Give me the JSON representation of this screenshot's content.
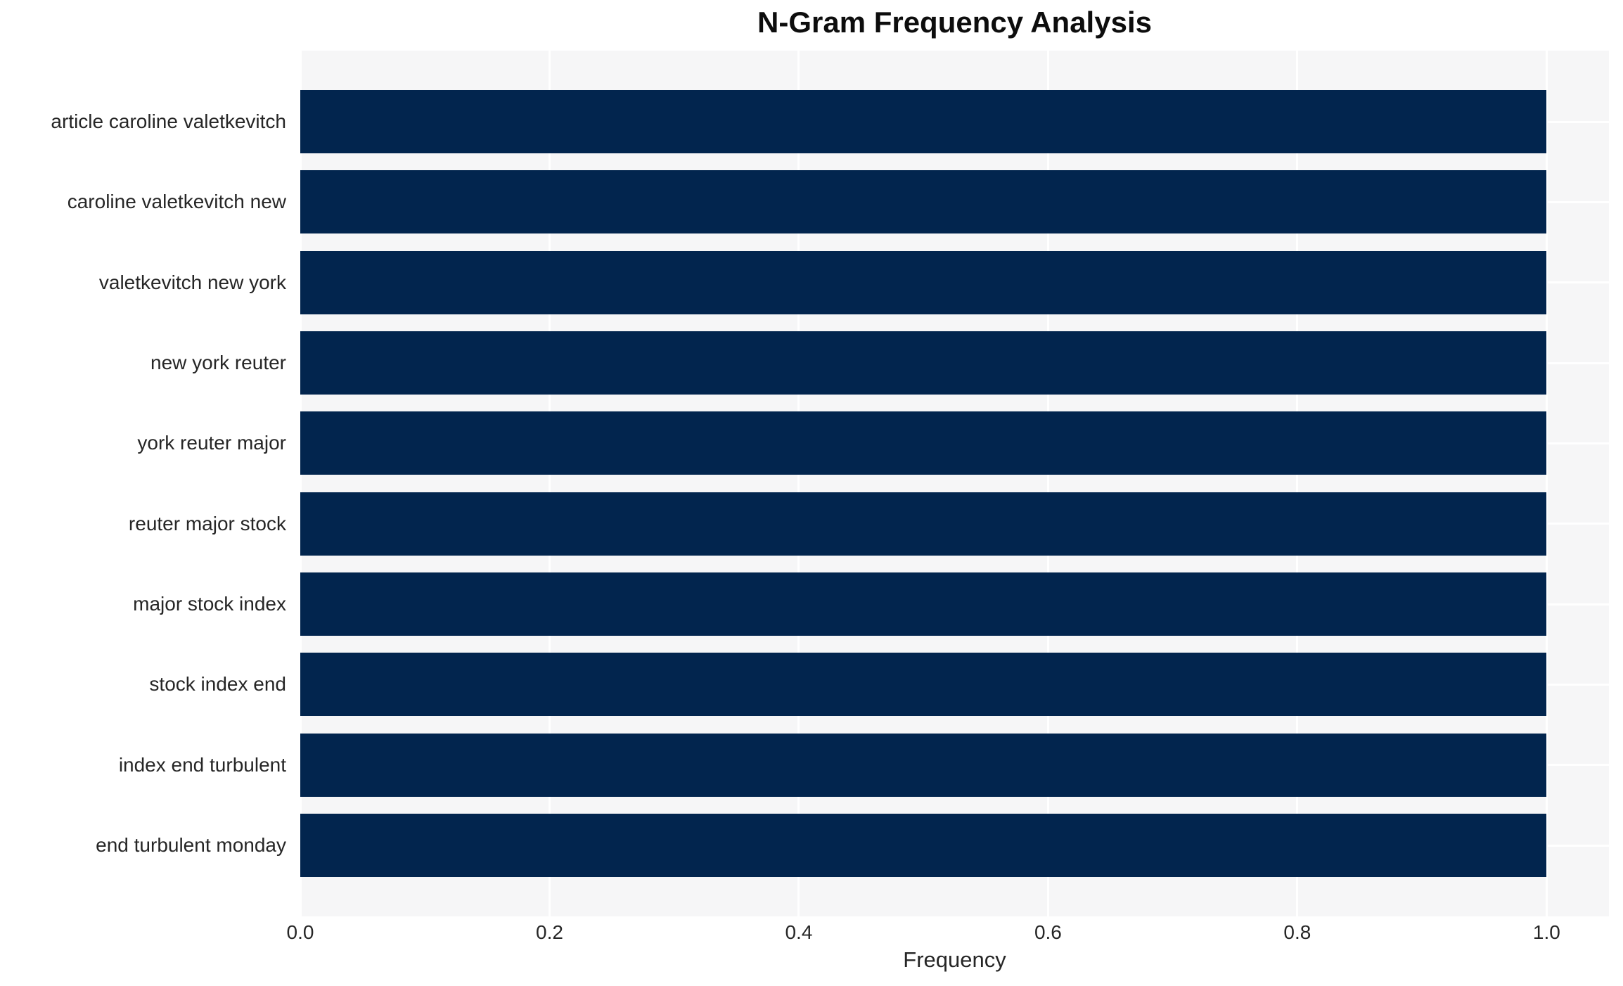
{
  "chart_data": {
    "type": "bar",
    "orientation": "horizontal",
    "title": "N-Gram Frequency Analysis",
    "xlabel": "Frequency",
    "ylabel": "",
    "categories": [
      "article caroline valetkevitch",
      "caroline valetkevitch new",
      "valetkevitch new york",
      "new york reuter",
      "york reuter major",
      "reuter major stock",
      "major stock index",
      "stock index end",
      "index end turbulent",
      "end turbulent monday"
    ],
    "values": [
      1.0,
      1.0,
      1.0,
      1.0,
      1.0,
      1.0,
      1.0,
      1.0,
      1.0,
      1.0
    ],
    "xlim": [
      0,
      1.05
    ],
    "xticks": [
      0.0,
      0.2,
      0.4,
      0.6,
      0.8,
      1.0
    ],
    "xtick_labels": [
      "0.0",
      "0.2",
      "0.4",
      "0.6",
      "0.8",
      "1.0"
    ],
    "grid": true,
    "legend": false,
    "colors": {
      "bar": "#02254e",
      "plot_background": "#f6f6f7",
      "gridline": "#ffffff",
      "tick_text": "#262626",
      "title_text": "#0d0d0d"
    }
  }
}
